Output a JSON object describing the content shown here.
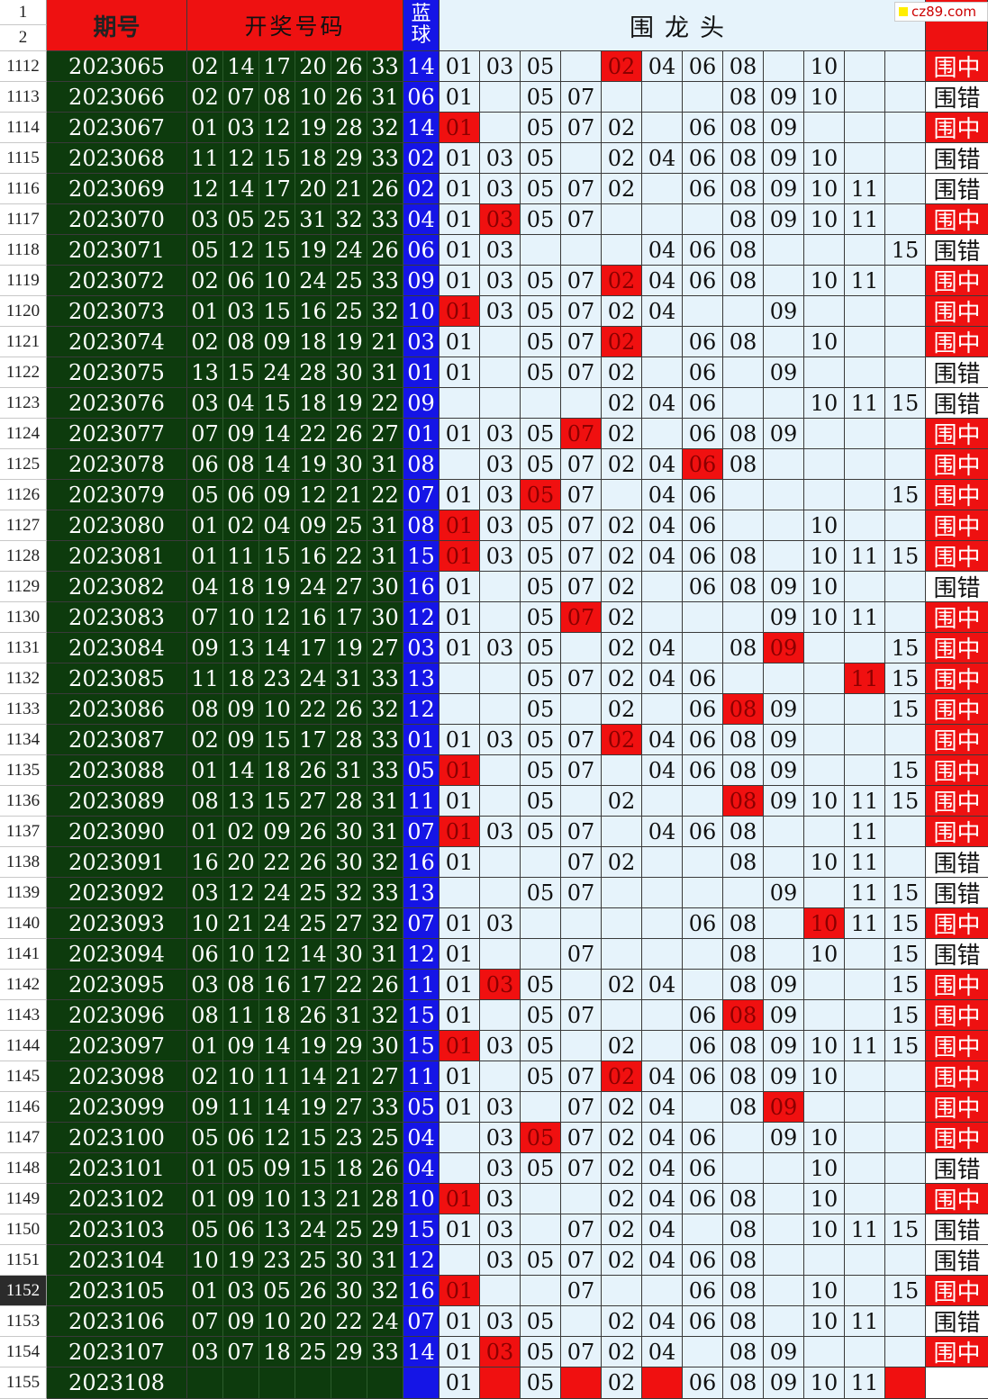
{
  "header": {
    "row_numbers": [
      "1",
      "2"
    ],
    "period_label": "期号",
    "winning_label": "开奖号码",
    "blue_label_top": "蓝",
    "blue_label_bottom": "球",
    "candidates_label": "围龙头",
    "result_label": ""
  },
  "watermark": "cz89.com",
  "selected_row": "1152",
  "colors": {
    "header_red": "#ee1111",
    "dark_green": "#0d3b0d",
    "blue_ball": "#1515e6",
    "candidate_bg": "#e6f3fb",
    "hit_red": "#f01010"
  },
  "rows": [
    {
      "row": "1112",
      "period": "2023065",
      "nums": [
        "02",
        "14",
        "17",
        "20",
        "26",
        "33"
      ],
      "blue": "14",
      "cand": [
        "01",
        "03",
        "05",
        "",
        "02",
        "04",
        "06",
        "08",
        "",
        "10",
        "",
        ""
      ],
      "hit": [
        4
      ],
      "result": "围中"
    },
    {
      "row": "1113",
      "period": "2023066",
      "nums": [
        "02",
        "07",
        "08",
        "10",
        "26",
        "31"
      ],
      "blue": "06",
      "cand": [
        "01",
        "",
        "05",
        "07",
        "",
        "",
        "",
        "08",
        "09",
        "10",
        "",
        ""
      ],
      "hit": [],
      "result": "围错"
    },
    {
      "row": "1114",
      "period": "2023067",
      "nums": [
        "01",
        "03",
        "12",
        "19",
        "28",
        "32"
      ],
      "blue": "14",
      "cand": [
        "01",
        "",
        "05",
        "07",
        "02",
        "",
        "06",
        "08",
        "09",
        "",
        "",
        ""
      ],
      "hit": [
        0
      ],
      "result": "围中"
    },
    {
      "row": "1115",
      "period": "2023068",
      "nums": [
        "11",
        "12",
        "15",
        "18",
        "29",
        "33"
      ],
      "blue": "02",
      "cand": [
        "01",
        "03",
        "05",
        "",
        "02",
        "04",
        "06",
        "08",
        "09",
        "10",
        "",
        ""
      ],
      "hit": [],
      "result": "围错"
    },
    {
      "row": "1116",
      "period": "2023069",
      "nums": [
        "12",
        "14",
        "17",
        "20",
        "21",
        "26"
      ],
      "blue": "02",
      "cand": [
        "01",
        "03",
        "05",
        "07",
        "02",
        "",
        "06",
        "08",
        "09",
        "10",
        "11",
        ""
      ],
      "hit": [],
      "result": "围错"
    },
    {
      "row": "1117",
      "period": "2023070",
      "nums": [
        "03",
        "05",
        "25",
        "31",
        "32",
        "33"
      ],
      "blue": "04",
      "cand": [
        "01",
        "03",
        "05",
        "07",
        "",
        "",
        "",
        "08",
        "09",
        "10",
        "11",
        ""
      ],
      "hit": [
        1
      ],
      "result": "围中"
    },
    {
      "row": "1118",
      "period": "2023071",
      "nums": [
        "05",
        "12",
        "15",
        "19",
        "24",
        "26"
      ],
      "blue": "06",
      "cand": [
        "01",
        "03",
        "",
        "",
        "",
        "04",
        "06",
        "08",
        "",
        "",
        "",
        "15"
      ],
      "hit": [],
      "result": "围错"
    },
    {
      "row": "1119",
      "period": "2023072",
      "nums": [
        "02",
        "06",
        "10",
        "24",
        "25",
        "33"
      ],
      "blue": "09",
      "cand": [
        "01",
        "03",
        "05",
        "07",
        "02",
        "04",
        "06",
        "08",
        "",
        "10",
        "11",
        ""
      ],
      "hit": [
        4
      ],
      "result": "围中"
    },
    {
      "row": "1120",
      "period": "2023073",
      "nums": [
        "01",
        "03",
        "15",
        "16",
        "25",
        "32"
      ],
      "blue": "10",
      "cand": [
        "01",
        "03",
        "05",
        "07",
        "02",
        "04",
        "",
        "",
        "09",
        "",
        "",
        ""
      ],
      "hit": [
        0
      ],
      "result": "围中"
    },
    {
      "row": "1121",
      "period": "2023074",
      "nums": [
        "02",
        "08",
        "09",
        "18",
        "19",
        "21"
      ],
      "blue": "03",
      "cand": [
        "01",
        "",
        "05",
        "07",
        "02",
        "",
        "06",
        "08",
        "",
        "10",
        "",
        ""
      ],
      "hit": [
        4
      ],
      "result": "围中"
    },
    {
      "row": "1122",
      "period": "2023075",
      "nums": [
        "13",
        "15",
        "24",
        "28",
        "30",
        "31"
      ],
      "blue": "01",
      "cand": [
        "01",
        "",
        "05",
        "07",
        "02",
        "",
        "06",
        "",
        "09",
        "",
        "",
        ""
      ],
      "hit": [],
      "result": "围错"
    },
    {
      "row": "1123",
      "period": "2023076",
      "nums": [
        "03",
        "04",
        "15",
        "18",
        "19",
        "22"
      ],
      "blue": "09",
      "cand": [
        "",
        "",
        "",
        "",
        "02",
        "04",
        "06",
        "",
        "",
        "10",
        "11",
        "15"
      ],
      "hit": [],
      "result": "围错"
    },
    {
      "row": "1124",
      "period": "2023077",
      "nums": [
        "07",
        "09",
        "14",
        "22",
        "26",
        "27"
      ],
      "blue": "01",
      "cand": [
        "01",
        "03",
        "05",
        "07",
        "02",
        "",
        "06",
        "08",
        "09",
        "",
        "",
        ""
      ],
      "hit": [
        3
      ],
      "result": "围中"
    },
    {
      "row": "1125",
      "period": "2023078",
      "nums": [
        "06",
        "08",
        "14",
        "19",
        "30",
        "31"
      ],
      "blue": "08",
      "cand": [
        "",
        "03",
        "05",
        "07",
        "02",
        "04",
        "06",
        "08",
        "",
        "",
        "",
        ""
      ],
      "hit": [
        6
      ],
      "result": "围中"
    },
    {
      "row": "1126",
      "period": "2023079",
      "nums": [
        "05",
        "06",
        "09",
        "12",
        "21",
        "22"
      ],
      "blue": "07",
      "cand": [
        "01",
        "03",
        "05",
        "07",
        "",
        "04",
        "06",
        "",
        "",
        "",
        "",
        "15"
      ],
      "hit": [
        2
      ],
      "result": "围中"
    },
    {
      "row": "1127",
      "period": "2023080",
      "nums": [
        "01",
        "02",
        "04",
        "09",
        "25",
        "31"
      ],
      "blue": "08",
      "cand": [
        "01",
        "03",
        "05",
        "07",
        "02",
        "04",
        "06",
        "",
        "",
        "10",
        "",
        ""
      ],
      "hit": [
        0
      ],
      "result": "围中"
    },
    {
      "row": "1128",
      "period": "2023081",
      "nums": [
        "01",
        "11",
        "15",
        "16",
        "22",
        "31"
      ],
      "blue": "15",
      "cand": [
        "01",
        "03",
        "05",
        "07",
        "02",
        "04",
        "06",
        "08",
        "",
        "10",
        "11",
        "15"
      ],
      "hit": [
        0
      ],
      "result": "围中"
    },
    {
      "row": "1129",
      "period": "2023082",
      "nums": [
        "04",
        "18",
        "19",
        "24",
        "27",
        "30"
      ],
      "blue": "16",
      "cand": [
        "01",
        "",
        "05",
        "07",
        "02",
        "",
        "06",
        "08",
        "09",
        "10",
        "",
        ""
      ],
      "hit": [],
      "result": "围错"
    },
    {
      "row": "1130",
      "period": "2023083",
      "nums": [
        "07",
        "10",
        "12",
        "16",
        "17",
        "30"
      ],
      "blue": "12",
      "cand": [
        "01",
        "",
        "05",
        "07",
        "02",
        "",
        "",
        "",
        "09",
        "10",
        "11",
        ""
      ],
      "hit": [
        3
      ],
      "result": "围中"
    },
    {
      "row": "1131",
      "period": "2023084",
      "nums": [
        "09",
        "13",
        "14",
        "17",
        "19",
        "27"
      ],
      "blue": "03",
      "cand": [
        "01",
        "03",
        "05",
        "",
        "02",
        "04",
        "",
        "08",
        "09",
        "",
        "",
        "15"
      ],
      "hit": [
        8
      ],
      "result": "围中"
    },
    {
      "row": "1132",
      "period": "2023085",
      "nums": [
        "11",
        "18",
        "23",
        "24",
        "31",
        "33"
      ],
      "blue": "13",
      "cand": [
        "",
        "",
        "05",
        "07",
        "02",
        "04",
        "06",
        "",
        "",
        "",
        "11",
        "15"
      ],
      "hit": [
        10
      ],
      "result": "围中"
    },
    {
      "row": "1133",
      "period": "2023086",
      "nums": [
        "08",
        "09",
        "10",
        "22",
        "26",
        "32"
      ],
      "blue": "12",
      "cand": [
        "",
        "",
        "05",
        "",
        "02",
        "",
        "06",
        "08",
        "09",
        "",
        "",
        "15"
      ],
      "hit": [
        7
      ],
      "result": "围中"
    },
    {
      "row": "1134",
      "period": "2023087",
      "nums": [
        "02",
        "09",
        "15",
        "17",
        "28",
        "33"
      ],
      "blue": "01",
      "cand": [
        "01",
        "03",
        "05",
        "07",
        "02",
        "04",
        "06",
        "08",
        "09",
        "",
        "",
        ""
      ],
      "hit": [
        4
      ],
      "result": "围中"
    },
    {
      "row": "1135",
      "period": "2023088",
      "nums": [
        "01",
        "14",
        "18",
        "26",
        "31",
        "33"
      ],
      "blue": "05",
      "cand": [
        "01",
        "",
        "05",
        "07",
        "",
        "04",
        "06",
        "08",
        "09",
        "",
        "",
        "15"
      ],
      "hit": [
        0
      ],
      "result": "围中"
    },
    {
      "row": "1136",
      "period": "2023089",
      "nums": [
        "08",
        "13",
        "15",
        "27",
        "28",
        "31"
      ],
      "blue": "11",
      "cand": [
        "01",
        "",
        "05",
        "",
        "02",
        "",
        "",
        "08",
        "09",
        "10",
        "11",
        "15"
      ],
      "hit": [
        7
      ],
      "result": "围中"
    },
    {
      "row": "1137",
      "period": "2023090",
      "nums": [
        "01",
        "02",
        "09",
        "26",
        "30",
        "31"
      ],
      "blue": "07",
      "cand": [
        "01",
        "03",
        "05",
        "07",
        "",
        "04",
        "06",
        "08",
        "",
        "",
        "11",
        ""
      ],
      "hit": [
        0
      ],
      "result": "围中"
    },
    {
      "row": "1138",
      "period": "2023091",
      "nums": [
        "16",
        "20",
        "22",
        "26",
        "30",
        "32"
      ],
      "blue": "16",
      "cand": [
        "01",
        "",
        "",
        "07",
        "02",
        "",
        "",
        "08",
        "",
        "10",
        "11",
        ""
      ],
      "hit": [],
      "result": "围错"
    },
    {
      "row": "1139",
      "period": "2023092",
      "nums": [
        "03",
        "12",
        "24",
        "25",
        "32",
        "33"
      ],
      "blue": "13",
      "cand": [
        "",
        "",
        "05",
        "07",
        "",
        "",
        "",
        "",
        "09",
        "",
        "11",
        "15"
      ],
      "hit": [],
      "result": "围错"
    },
    {
      "row": "1140",
      "period": "2023093",
      "nums": [
        "10",
        "21",
        "24",
        "25",
        "27",
        "32"
      ],
      "blue": "07",
      "cand": [
        "01",
        "03",
        "",
        "",
        "",
        "",
        "06",
        "08",
        "",
        "10",
        "11",
        "15"
      ],
      "hit": [
        9
      ],
      "result": "围中"
    },
    {
      "row": "1141",
      "period": "2023094",
      "nums": [
        "06",
        "10",
        "12",
        "14",
        "30",
        "31"
      ],
      "blue": "12",
      "cand": [
        "01",
        "",
        "",
        "07",
        "",
        "",
        "",
        "08",
        "",
        "10",
        "",
        "15"
      ],
      "hit": [],
      "result": "围错"
    },
    {
      "row": "1142",
      "period": "2023095",
      "nums": [
        "03",
        "08",
        "16",
        "17",
        "22",
        "26"
      ],
      "blue": "11",
      "cand": [
        "01",
        "03",
        "05",
        "",
        "02",
        "04",
        "",
        "08",
        "09",
        "",
        "",
        "15"
      ],
      "hit": [
        1
      ],
      "result": "围中"
    },
    {
      "row": "1143",
      "period": "2023096",
      "nums": [
        "08",
        "11",
        "18",
        "26",
        "31",
        "32"
      ],
      "blue": "15",
      "cand": [
        "01",
        "",
        "05",
        "07",
        "",
        "",
        "06",
        "08",
        "09",
        "",
        "",
        "15"
      ],
      "hit": [
        7
      ],
      "result": "围中"
    },
    {
      "row": "1144",
      "period": "2023097",
      "nums": [
        "01",
        "09",
        "14",
        "19",
        "29",
        "30"
      ],
      "blue": "15",
      "cand": [
        "01",
        "03",
        "05",
        "",
        "02",
        "",
        "06",
        "08",
        "09",
        "10",
        "11",
        "15"
      ],
      "hit": [
        0
      ],
      "result": "围中"
    },
    {
      "row": "1145",
      "period": "2023098",
      "nums": [
        "02",
        "10",
        "11",
        "14",
        "21",
        "27"
      ],
      "blue": "11",
      "cand": [
        "01",
        "",
        "05",
        "07",
        "02",
        "04",
        "06",
        "08",
        "09",
        "10",
        "",
        ""
      ],
      "hit": [
        4
      ],
      "result": "围中"
    },
    {
      "row": "1146",
      "period": "2023099",
      "nums": [
        "09",
        "11",
        "14",
        "19",
        "27",
        "33"
      ],
      "blue": "05",
      "cand": [
        "01",
        "03",
        "",
        "07",
        "02",
        "04",
        "",
        "08",
        "09",
        "",
        "",
        ""
      ],
      "hit": [
        8
      ],
      "result": "围中"
    },
    {
      "row": "1147",
      "period": "2023100",
      "nums": [
        "05",
        "06",
        "12",
        "15",
        "23",
        "25"
      ],
      "blue": "04",
      "cand": [
        "",
        "03",
        "05",
        "07",
        "02",
        "04",
        "06",
        "",
        "09",
        "10",
        "",
        ""
      ],
      "hit": [
        2
      ],
      "result": "围中"
    },
    {
      "row": "1148",
      "period": "2023101",
      "nums": [
        "01",
        "05",
        "09",
        "15",
        "18",
        "26"
      ],
      "blue": "04",
      "cand": [
        "",
        "03",
        "05",
        "07",
        "02",
        "04",
        "06",
        "",
        "",
        "10",
        "",
        ""
      ],
      "hit": [],
      "result": "围错"
    },
    {
      "row": "1149",
      "period": "2023102",
      "nums": [
        "01",
        "09",
        "10",
        "13",
        "21",
        "28"
      ],
      "blue": "10",
      "cand": [
        "01",
        "03",
        "",
        "",
        "02",
        "04",
        "06",
        "08",
        "",
        "10",
        "",
        ""
      ],
      "hit": [
        0
      ],
      "result": "围中"
    },
    {
      "row": "1150",
      "period": "2023103",
      "nums": [
        "05",
        "06",
        "13",
        "24",
        "25",
        "29"
      ],
      "blue": "15",
      "cand": [
        "01",
        "03",
        "",
        "07",
        "02",
        "04",
        "",
        "08",
        "",
        "10",
        "11",
        "15"
      ],
      "hit": [],
      "result": "围错"
    },
    {
      "row": "1151",
      "period": "2023104",
      "nums": [
        "10",
        "19",
        "23",
        "25",
        "30",
        "31"
      ],
      "blue": "12",
      "cand": [
        "",
        "03",
        "05",
        "07",
        "02",
        "04",
        "06",
        "08",
        "",
        "",
        "",
        ""
      ],
      "hit": [],
      "result": "围错"
    },
    {
      "row": "1152",
      "period": "2023105",
      "nums": [
        "01",
        "03",
        "05",
        "26",
        "30",
        "32"
      ],
      "blue": "16",
      "cand": [
        "01",
        "",
        "",
        "07",
        "",
        "",
        "06",
        "08",
        "",
        "10",
        "",
        "15"
      ],
      "hit": [
        0
      ],
      "result": "围中"
    },
    {
      "row": "1153",
      "period": "2023106",
      "nums": [
        "07",
        "09",
        "10",
        "20",
        "22",
        "24"
      ],
      "blue": "07",
      "cand": [
        "01",
        "03",
        "05",
        "",
        "02",
        "04",
        "06",
        "08",
        "",
        "10",
        "11",
        ""
      ],
      "hit": [],
      "result": "围错"
    },
    {
      "row": "1154",
      "period": "2023107",
      "nums": [
        "03",
        "07",
        "18",
        "25",
        "29",
        "33"
      ],
      "blue": "14",
      "cand": [
        "01",
        "03",
        "05",
        "07",
        "02",
        "04",
        "",
        "08",
        "09",
        "",
        "",
        ""
      ],
      "hit": [
        1
      ],
      "result": "围中"
    },
    {
      "row": "1155",
      "period": "2023108",
      "nums": [
        "",
        "",
        "",
        "",
        "",
        ""
      ],
      "blue": "",
      "cand": [
        "01",
        "",
        "05",
        "",
        "02",
        "",
        "06",
        "08",
        "09",
        "10",
        "11",
        ""
      ],
      "hit": [
        1,
        3,
        5,
        11
      ],
      "result": ""
    }
  ]
}
